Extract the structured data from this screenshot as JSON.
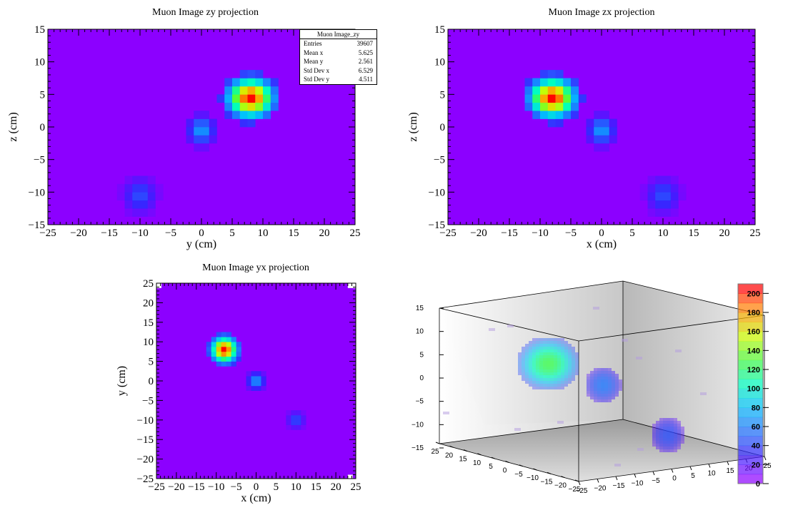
{
  "chart_data": [
    {
      "type": "heatmap",
      "title": "Muon Image zy projection",
      "xlabel": "y (cm)",
      "ylabel": "z (cm)",
      "xlim": [
        -25,
        25
      ],
      "ylim": [
        -15,
        15
      ],
      "xticks": [
        -25,
        -20,
        -15,
        -10,
        -5,
        0,
        5,
        10,
        15,
        20,
        25
      ],
      "yticks": [
        -15,
        -10,
        -5,
        0,
        5,
        10,
        15
      ],
      "background_color": "#8c00ff",
      "blobs": [
        {
          "cx": 8.0,
          "cy": 4.5,
          "rx": 4.5,
          "ry": 3.6,
          "peak": 230
        },
        {
          "cx": 0.0,
          "cy": -0.5,
          "rx": 2.5,
          "ry": 2.5,
          "peak": 75
        },
        {
          "cx": -10.0,
          "cy": -10.5,
          "rx": 3.0,
          "ry": 3.0,
          "peak": 45
        }
      ],
      "stats": {
        "title": "Muon Image_zy",
        "rows": [
          {
            "label": "Entries",
            "value": "39607"
          },
          {
            "label": "Mean x",
            "value": "5.625"
          },
          {
            "label": "Mean y",
            "value": "2.561"
          },
          {
            "label": "Std Dev x",
            "value": "6.529"
          },
          {
            "label": "Std Dev y",
            "value": "4.511"
          }
        ]
      }
    },
    {
      "type": "heatmap",
      "title": "Muon Image zx projection",
      "xlabel": "x (cm)",
      "ylabel": "z (cm)",
      "xlim": [
        -25,
        25
      ],
      "ylim": [
        -15,
        15
      ],
      "xticks": [
        -25,
        -20,
        -15,
        -10,
        -5,
        0,
        5,
        10,
        15,
        20,
        25
      ],
      "yticks": [
        -15,
        -10,
        -5,
        0,
        5,
        10,
        15
      ],
      "background_color": "#8c00ff",
      "blobs": [
        {
          "cx": -8.0,
          "cy": 4.5,
          "rx": 4.5,
          "ry": 3.6,
          "peak": 230
        },
        {
          "cx": 0.0,
          "cy": -0.5,
          "rx": 2.5,
          "ry": 2.5,
          "peak": 75
        },
        {
          "cx": 10.0,
          "cy": -10.5,
          "rx": 3.0,
          "ry": 3.0,
          "peak": 45
        }
      ]
    },
    {
      "type": "heatmap",
      "title": "Muon Image yx projection",
      "xlabel": "x (cm)",
      "ylabel": "y (cm)",
      "xlim": [
        -25,
        25
      ],
      "ylim": [
        -25,
        25
      ],
      "xticks": [
        -25,
        -20,
        -15,
        -10,
        -5,
        0,
        5,
        10,
        15,
        20,
        25
      ],
      "yticks": [
        -25,
        -20,
        -15,
        -10,
        -5,
        0,
        5,
        10,
        15,
        20,
        25
      ],
      "background_color": "#8c00ff",
      "blobs": [
        {
          "cx": -8.0,
          "cy": 8.0,
          "rx": 4.0,
          "ry": 4.0,
          "peak": 230
        },
        {
          "cx": 0.0,
          "cy": 0.0,
          "rx": 2.5,
          "ry": 2.5,
          "peak": 75
        },
        {
          "cx": 10.0,
          "cy": -10.0,
          "rx": 2.5,
          "ry": 2.5,
          "peak": 45
        }
      ],
      "white_cells": [
        [
          -25,
          25
        ],
        [
          23,
          25
        ],
        [
          24,
          25
        ],
        [
          23,
          -24
        ]
      ]
    },
    {
      "type": "heatmap",
      "title": "",
      "view": "3d-box",
      "z_ticks": [
        15,
        10,
        5,
        0,
        -5,
        -10,
        -15
      ],
      "y_ticks": [
        25,
        20,
        15,
        10,
        5,
        0,
        -5,
        -10,
        -15,
        -20,
        -25
      ],
      "x_ticks": [
        -25,
        -20,
        -15,
        -10,
        -5,
        0,
        5,
        10,
        15,
        20,
        25
      ],
      "colorbar": {
        "min": 0,
        "max": 210,
        "ticks": [
          0,
          20,
          40,
          60,
          80,
          100,
          120,
          140,
          160,
          180,
          200
        ]
      },
      "blobs": [
        {
          "cx": -8,
          "cy": 8,
          "cz": 4.5,
          "r": 4.5,
          "peak": 140
        },
        {
          "cx": 0,
          "cy": 0,
          "cz": -0.5,
          "r": 2.5,
          "peak": 60
        },
        {
          "cx": 10,
          "cy": -10,
          "cz": -10.5,
          "r": 2.8,
          "peak": 45
        }
      ]
    }
  ]
}
